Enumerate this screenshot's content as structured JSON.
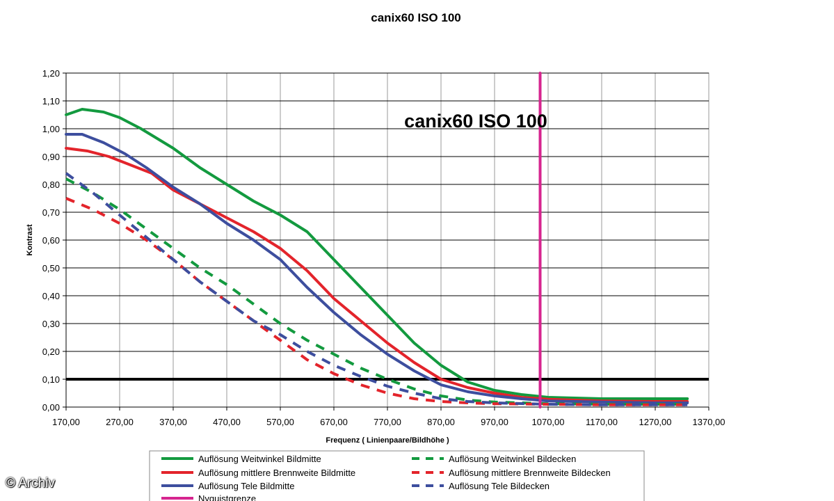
{
  "chart_data": {
    "type": "line",
    "title": "canix60   ISO 100",
    "inner_title": "canix60   ISO 100",
    "xlabel": "Frequenz ( Linienpaare/Bildhöhe )",
    "ylabel": "Kontrast",
    "xlim": [
      170,
      1370
    ],
    "ylim": [
      0,
      1.2
    ],
    "x_ticks": [
      "170,00",
      "270,00",
      "370,00",
      "470,00",
      "570,00",
      "670,00",
      "770,00",
      "870,00",
      "970,00",
      "1070,00",
      "1170,00",
      "1270,00",
      "1370,00"
    ],
    "y_ticks": [
      "0,00",
      "0,10",
      "0,20",
      "0,30",
      "0,40",
      "0,50",
      "0,60",
      "0,70",
      "0,80",
      "0,90",
      "1,00",
      "1,10",
      "1,20"
    ],
    "grid": true,
    "legend_position": "bottom",
    "threshold_line": 0.1,
    "series": [
      {
        "name": "Auflösung Weitwinkel Bildmitte",
        "color": "#139a3f",
        "dash": false,
        "points": [
          [
            170,
            1.05
          ],
          [
            200,
            1.07
          ],
          [
            240,
            1.06
          ],
          [
            270,
            1.04
          ],
          [
            310,
            1.0
          ],
          [
            370,
            0.93
          ],
          [
            420,
            0.86
          ],
          [
            470,
            0.8
          ],
          [
            520,
            0.74
          ],
          [
            570,
            0.69
          ],
          [
            620,
            0.63
          ],
          [
            670,
            0.53
          ],
          [
            720,
            0.43
          ],
          [
            770,
            0.33
          ],
          [
            820,
            0.23
          ],
          [
            870,
            0.15
          ],
          [
            920,
            0.09
          ],
          [
            970,
            0.06
          ],
          [
            1020,
            0.045
          ],
          [
            1070,
            0.035
          ],
          [
            1170,
            0.03
          ],
          [
            1270,
            0.03
          ],
          [
            1330,
            0.03
          ]
        ]
      },
      {
        "name": "Auflösung mittlere Brennweite Bildmitte",
        "color": "#e3242b",
        "dash": false,
        "points": [
          [
            170,
            0.93
          ],
          [
            210,
            0.92
          ],
          [
            250,
            0.9
          ],
          [
            290,
            0.87
          ],
          [
            330,
            0.84
          ],
          [
            370,
            0.78
          ],
          [
            420,
            0.73
          ],
          [
            470,
            0.68
          ],
          [
            520,
            0.63
          ],
          [
            570,
            0.57
          ],
          [
            620,
            0.49
          ],
          [
            670,
            0.39
          ],
          [
            720,
            0.31
          ],
          [
            770,
            0.23
          ],
          [
            820,
            0.16
          ],
          [
            870,
            0.1
          ],
          [
            920,
            0.07
          ],
          [
            970,
            0.05
          ],
          [
            1020,
            0.035
          ],
          [
            1070,
            0.028
          ],
          [
            1170,
            0.022
          ],
          [
            1270,
            0.02
          ],
          [
            1330,
            0.02
          ]
        ]
      },
      {
        "name": "Auflösung Tele Bildmitte",
        "color": "#3d4e9e",
        "dash": false,
        "points": [
          [
            170,
            0.98
          ],
          [
            200,
            0.98
          ],
          [
            240,
            0.95
          ],
          [
            280,
            0.91
          ],
          [
            320,
            0.86
          ],
          [
            370,
            0.79
          ],
          [
            420,
            0.73
          ],
          [
            470,
            0.66
          ],
          [
            520,
            0.6
          ],
          [
            570,
            0.53
          ],
          [
            620,
            0.43
          ],
          [
            670,
            0.34
          ],
          [
            720,
            0.26
          ],
          [
            770,
            0.19
          ],
          [
            820,
            0.13
          ],
          [
            870,
            0.08
          ],
          [
            920,
            0.055
          ],
          [
            970,
            0.04
          ],
          [
            1020,
            0.03
          ],
          [
            1070,
            0.022
          ],
          [
            1170,
            0.018
          ],
          [
            1270,
            0.015
          ],
          [
            1330,
            0.015
          ]
        ]
      },
      {
        "name": "Auflösung Weitwinkel Bildecken",
        "color": "#139a3f",
        "dash": true,
        "points": [
          [
            170,
            0.82
          ],
          [
            220,
            0.77
          ],
          [
            270,
            0.71
          ],
          [
            320,
            0.64
          ],
          [
            370,
            0.57
          ],
          [
            420,
            0.5
          ],
          [
            470,
            0.44
          ],
          [
            520,
            0.37
          ],
          [
            570,
            0.3
          ],
          [
            620,
            0.24
          ],
          [
            670,
            0.19
          ],
          [
            720,
            0.14
          ],
          [
            770,
            0.1
          ],
          [
            820,
            0.065
          ],
          [
            870,
            0.04
          ],
          [
            920,
            0.025
          ],
          [
            970,
            0.018
          ],
          [
            1070,
            0.012
          ],
          [
            1170,
            0.01
          ],
          [
            1270,
            0.01
          ],
          [
            1330,
            0.01
          ]
        ]
      },
      {
        "name": "Auflösung mittlere Brennweite Bildecken",
        "color": "#e3242b",
        "dash": true,
        "points": [
          [
            170,
            0.75
          ],
          [
            220,
            0.71
          ],
          [
            270,
            0.66
          ],
          [
            320,
            0.6
          ],
          [
            370,
            0.53
          ],
          [
            420,
            0.45
          ],
          [
            470,
            0.38
          ],
          [
            520,
            0.31
          ],
          [
            570,
            0.24
          ],
          [
            620,
            0.17
          ],
          [
            670,
            0.12
          ],
          [
            720,
            0.08
          ],
          [
            770,
            0.05
          ],
          [
            820,
            0.03
          ],
          [
            870,
            0.02
          ],
          [
            920,
            0.015
          ],
          [
            970,
            0.012
          ],
          [
            1070,
            0.01
          ],
          [
            1170,
            0.008
          ],
          [
            1270,
            0.008
          ],
          [
            1330,
            0.008
          ]
        ]
      },
      {
        "name": "Auflösung Tele Bildecken",
        "color": "#3d4e9e",
        "dash": true,
        "points": [
          [
            170,
            0.84
          ],
          [
            220,
            0.77
          ],
          [
            270,
            0.69
          ],
          [
            320,
            0.61
          ],
          [
            370,
            0.53
          ],
          [
            420,
            0.45
          ],
          [
            470,
            0.38
          ],
          [
            520,
            0.31
          ],
          [
            570,
            0.26
          ],
          [
            620,
            0.2
          ],
          [
            670,
            0.15
          ],
          [
            720,
            0.11
          ],
          [
            770,
            0.075
          ],
          [
            820,
            0.05
          ],
          [
            870,
            0.03
          ],
          [
            920,
            0.02
          ],
          [
            970,
            0.015
          ],
          [
            1070,
            0.01
          ],
          [
            1170,
            0.008
          ],
          [
            1270,
            0.008
          ],
          [
            1330,
            0.008
          ]
        ]
      },
      {
        "name": "Nyquistgrenze",
        "color": "#d6258f",
        "dash": false,
        "points": [
          [
            1055,
            0
          ],
          [
            1055,
            1.2
          ]
        ]
      }
    ]
  },
  "watermark": "© Archiv"
}
